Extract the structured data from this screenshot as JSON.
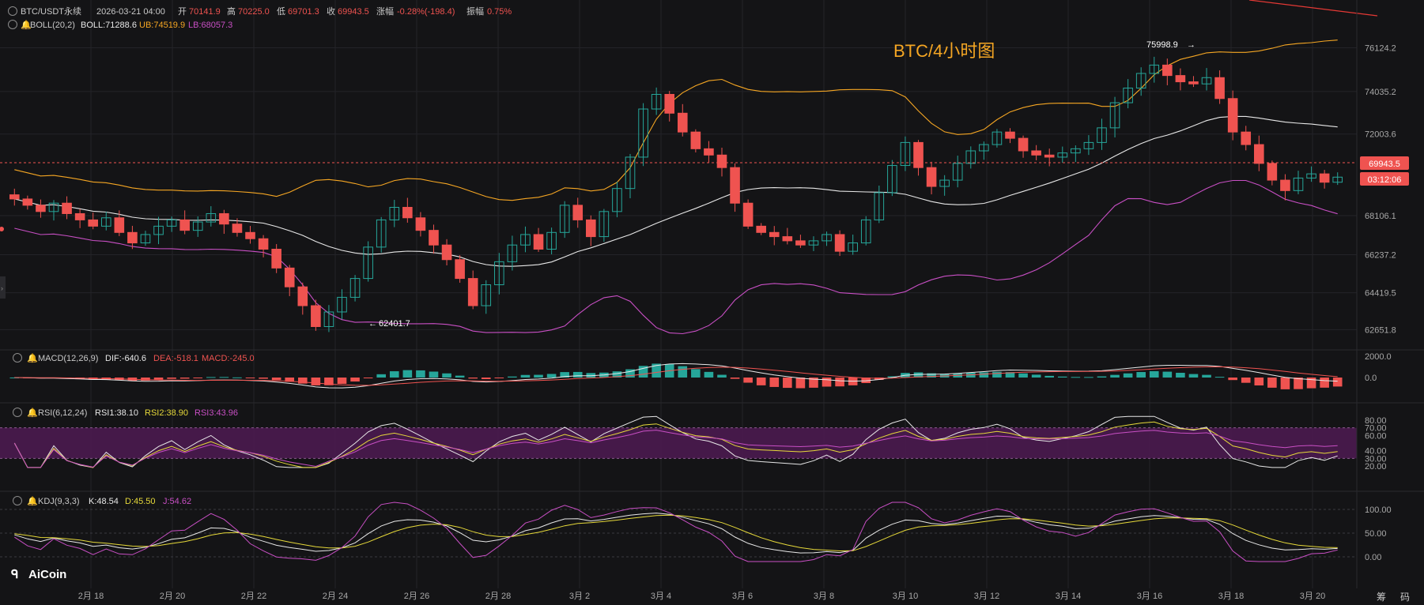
{
  "header": {
    "symbol": "BTC/USDT永续",
    "datetime": "2026-03-21 04:00",
    "open_label": "开",
    "open_value": "70141.9",
    "high_label": "高",
    "high_value": "70225.0",
    "low_label": "低",
    "low_value": "69701.3",
    "close_label": "收",
    "close_value": "69943.5",
    "change_label": "涨幅",
    "change_value": "-0.28%(-198.4)",
    "amp_label": "振幅",
    "amp_value": "0.75%"
  },
  "boll": {
    "label": "BOLL(20,2)",
    "mid": "BOLL:71288.6",
    "ub": "UB:74519.9",
    "lb": "LB:68057.3"
  },
  "title": "BTC/4小时图",
  "price_axis": [
    "76124.2",
    "74035.2",
    "72003.6",
    "68106.1",
    "66237.2",
    "64419.5",
    "62651.8"
  ],
  "current_price": "69943.5",
  "countdown": "03:12:06",
  "high_marker": "75998.9",
  "low_marker": "62401.7",
  "macd": {
    "label": "MACD(12,26,9)",
    "dif": "DIF:-640.6",
    "dea": "DEA:-518.1",
    "macd": "MACD:-245.0",
    "axis": [
      "2000.0",
      "0.0"
    ]
  },
  "rsi": {
    "label": "RSI(6,12,24)",
    "rsi1": "RSI1:38.10",
    "rsi2": "RSI2:38.90",
    "rsi3": "RSI3:43.96",
    "axis": [
      "80.00",
      "70.00",
      "60.00",
      "40.00",
      "30.00",
      "20.00"
    ]
  },
  "kdj": {
    "label": "KDJ(9,3,3)",
    "k": "K:48.54",
    "d": "D:45.50",
    "j": "J:54.62",
    "axis": [
      "100.00",
      "50.00",
      "0.00"
    ]
  },
  "dates": [
    "2月 18",
    "2月 20",
    "2月 22",
    "2月 24",
    "2月 26",
    "2月 28",
    "3月 2",
    "3月 4",
    "3月 6",
    "3月 8",
    "3月 10",
    "3月 12",
    "3月 14",
    "3月 16",
    "3月 18",
    "3月 20"
  ],
  "watermark": "AiCoin",
  "right_tabs": [
    "筹",
    "码"
  ],
  "colors": {
    "up": "#26a69a",
    "down": "#ef5350",
    "ub": "#f5a623",
    "mid": "#e8e8e8",
    "lb": "#c84fc4",
    "title": "#f5a623",
    "rsi_band": "#4a1a4f",
    "k": "#e8e8e8",
    "d": "#e6d93a",
    "j": "#c84fc4"
  },
  "chart_data": {
    "type": "candlestick",
    "title": "BTC/4小时图",
    "x_range": [
      "2026-02-17",
      "2026-03-21 04:00"
    ],
    "y_range": [
      62401.7,
      76124.2
    ],
    "ohlc_close_path": [
      68900,
      68600,
      68300,
      68700,
      68200,
      67900,
      67600,
      68000,
      67300,
      66800,
      67200,
      67600,
      67900,
      67400,
      67800,
      68200,
      67700,
      67300,
      67000,
      66500,
      65600,
      64700,
      63800,
      62800,
      63500,
      64200,
      65100,
      66600,
      67900,
      68500,
      68000,
      67400,
      66700,
      66000,
      65100,
      63800,
      64800,
      65900,
      66700,
      67200,
      66500,
      67300,
      68600,
      67900,
      67100,
      68300,
      69400,
      70900,
      73200,
      73900,
      73000,
      72100,
      71300,
      71000,
      70400,
      68700,
      67600,
      67300,
      67100,
      66900,
      66700,
      66900,
      67200,
      66400,
      66800,
      67900,
      69200,
      70500,
      71600,
      70400,
      69500,
      69800,
      70600,
      71200,
      71500,
      72100,
      71800,
      71200,
      71000,
      70900,
      71100,
      71300,
      71600,
      72300,
      73500,
      74200,
      74900,
      75300,
      74800,
      74500,
      74400,
      74700,
      73700,
      72100,
      71500,
      70600,
      69800,
      69300,
      69900,
      70100,
      69700,
      69943.5
    ],
    "boll": {
      "mid": 71288.6,
      "ub": 74519.9,
      "lb": 68057.3
    },
    "high_marker": 75998.9,
    "low_marker": 62401.7,
    "current_price": 69943.5,
    "macd": {
      "dif": -640.6,
      "dea": -518.1,
      "macd": -245.0
    },
    "rsi": {
      "rsi1": 38.1,
      "rsi2": 38.9,
      "rsi3": 43.96
    },
    "kdj": {
      "k": 48.54,
      "d": 45.5,
      "j": 54.62
    }
  }
}
